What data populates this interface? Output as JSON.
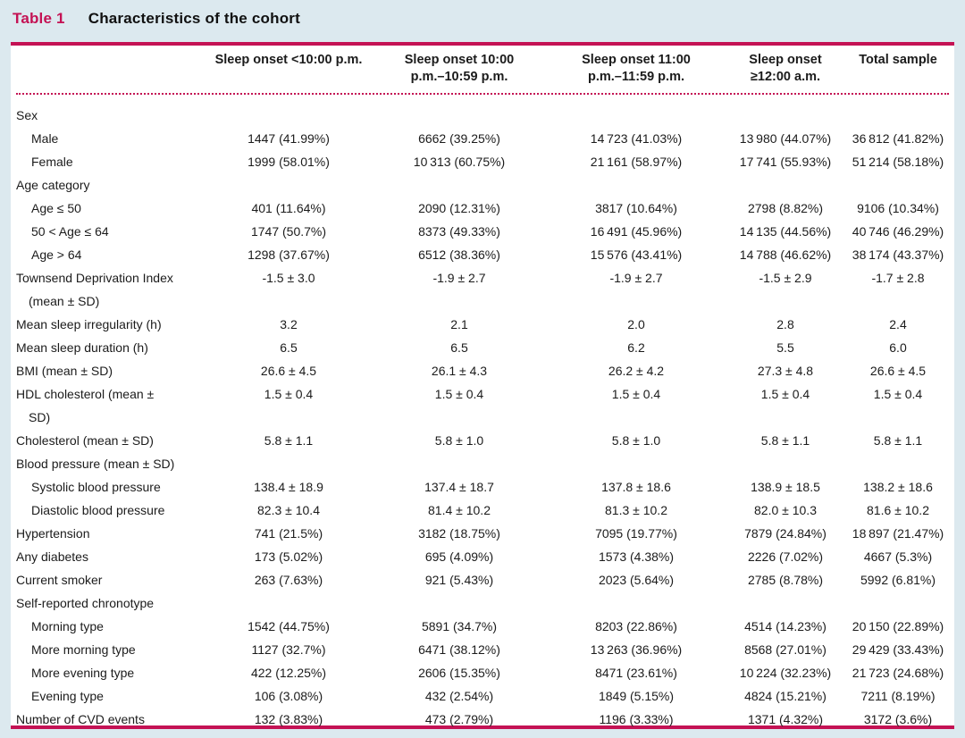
{
  "title": {
    "label": "Table 1",
    "text": "Characteristics of the cohort"
  },
  "colors": {
    "accent": "#c41254",
    "page_background": "#dce9ef",
    "panel_background": "#ffffff"
  },
  "columns": [
    "Sleep onset <10:00 p.m.",
    "Sleep onset 10:00\np.m.–10:59 p.m.",
    "Sleep onset 11:00\np.m.–11:59 p.m.",
    "Sleep onset\n≥12:00 a.m.",
    "Total sample"
  ],
  "rows": [
    {
      "label": "Sex",
      "indent": 0,
      "group": true,
      "values": [
        "",
        "",
        "",
        "",
        ""
      ]
    },
    {
      "label": "Male",
      "indent": 1,
      "values": [
        "1447 (41.99%)",
        "6662 (39.25%)",
        "14 723 (41.03%)",
        "13 980 (44.07%)",
        "36 812 (41.82%)"
      ]
    },
    {
      "label": "Female",
      "indent": 1,
      "values": [
        "1999 (58.01%)",
        "10 313 (60.75%)",
        "21 161 (58.97%)",
        "17 741 (55.93%)",
        "51 214 (58.18%)"
      ]
    },
    {
      "label": "Age category",
      "indent": 0,
      "group": true,
      "values": [
        "",
        "",
        "",
        "",
        ""
      ]
    },
    {
      "label": "Age ≤ 50",
      "indent": 1,
      "values": [
        "401 (11.64%)",
        "2090 (12.31%)",
        "3817 (10.64%)",
        "2798 (8.82%)",
        "9106 (10.34%)"
      ]
    },
    {
      "label": "50 < Age ≤ 64",
      "indent": 1,
      "values": [
        "1747 (50.7%)",
        "8373 (49.33%)",
        "16 491 (45.96%)",
        "14 135 (44.56%)",
        "40 746 (46.29%)"
      ]
    },
    {
      "label": "Age > 64",
      "indent": 1,
      "values": [
        "1298 (37.67%)",
        "6512 (38.36%)",
        "15 576 (43.41%)",
        "14 788 (46.62%)",
        "38 174 (43.37%)"
      ]
    },
    {
      "label": "Townsend Deprivation Index",
      "label2": "(mean ± SD)",
      "indent": 0,
      "values": [
        "-1.5 ± 3.0",
        "-1.9 ± 2.7",
        "-1.9 ± 2.7",
        "-1.5 ± 2.9",
        "-1.7 ± 2.8"
      ]
    },
    {
      "label": "Mean sleep irregularity (h)",
      "indent": 0,
      "values": [
        "3.2",
        "2.1",
        "2.0",
        "2.8",
        "2.4"
      ]
    },
    {
      "label": "Mean sleep duration (h)",
      "indent": 0,
      "values": [
        "6.5",
        "6.5",
        "6.2",
        "5.5",
        "6.0"
      ]
    },
    {
      "label": "BMI (mean ± SD)",
      "indent": 0,
      "values": [
        "26.6 ± 4.5",
        "26.1 ± 4.3",
        "26.2 ± 4.2",
        "27.3 ± 4.8",
        "26.6 ± 4.5"
      ]
    },
    {
      "label": "HDL cholesterol (mean ±",
      "label2": "SD)",
      "indent": 0,
      "values": [
        "1.5 ± 0.4",
        "1.5 ± 0.4",
        "1.5 ± 0.4",
        "1.5 ± 0.4",
        "1.5 ± 0.4"
      ]
    },
    {
      "label": "Cholesterol (mean ± SD)",
      "indent": 0,
      "values": [
        "5.8 ± 1.1",
        "5.8 ± 1.0",
        "5.8 ± 1.0",
        "5.8 ± 1.1",
        "5.8 ± 1.1"
      ]
    },
    {
      "label": "Blood pressure (mean ± SD)",
      "indent": 0,
      "group": true,
      "values": [
        "",
        "",
        "",
        "",
        ""
      ]
    },
    {
      "label": "Systolic blood pressure",
      "indent": 1,
      "values": [
        "138.4 ± 18.9",
        "137.4 ± 18.7",
        "137.8 ± 18.6",
        "138.9 ± 18.5",
        "138.2 ± 18.6"
      ]
    },
    {
      "label": "Diastolic blood pressure",
      "indent": 1,
      "values": [
        "82.3 ± 10.4",
        "81.4 ± 10.2",
        "81.3 ± 10.2",
        "82.0 ± 10.3",
        "81.6 ± 10.2"
      ]
    },
    {
      "label": "Hypertension",
      "indent": 0,
      "values": [
        "741 (21.5%)",
        "3182 (18.75%)",
        "7095 (19.77%)",
        "7879 (24.84%)",
        "18 897 (21.47%)"
      ]
    },
    {
      "label": "Any diabetes",
      "indent": 0,
      "values": [
        "173 (5.02%)",
        "695 (4.09%)",
        "1573 (4.38%)",
        "2226 (7.02%)",
        "4667 (5.3%)"
      ]
    },
    {
      "label": "Current smoker",
      "indent": 0,
      "values": [
        "263 (7.63%)",
        "921 (5.43%)",
        "2023 (5.64%)",
        "2785 (8.78%)",
        "5992 (6.81%)"
      ]
    },
    {
      "label": "Self-reported chronotype",
      "indent": 0,
      "group": true,
      "values": [
        "",
        "",
        "",
        "",
        ""
      ]
    },
    {
      "label": "Morning type",
      "indent": 1,
      "values": [
        "1542 (44.75%)",
        "5891 (34.7%)",
        "8203 (22.86%)",
        "4514 (14.23%)",
        "20 150 (22.89%)"
      ]
    },
    {
      "label": "More morning type",
      "indent": 1,
      "values": [
        "1127 (32.7%)",
        "6471 (38.12%)",
        "13 263 (36.96%)",
        "8568 (27.01%)",
        "29 429 (33.43%)"
      ]
    },
    {
      "label": "More evening type",
      "indent": 1,
      "values": [
        "422 (12.25%)",
        "2606 (15.35%)",
        "8471 (23.61%)",
        "10 224 (32.23%)",
        "21 723 (24.68%)"
      ]
    },
    {
      "label": "Evening type",
      "indent": 1,
      "values": [
        "106 (3.08%)",
        "432 (2.54%)",
        "1849 (5.15%)",
        "4824 (15.21%)",
        "7211 (8.19%)"
      ]
    },
    {
      "label": "Number of CVD events",
      "indent": 0,
      "values": [
        "132 (3.83%)",
        "473 (2.79%)",
        "1196 (3.33%)",
        "1371 (4.32%)",
        "3172 (3.6%)"
      ]
    }
  ]
}
